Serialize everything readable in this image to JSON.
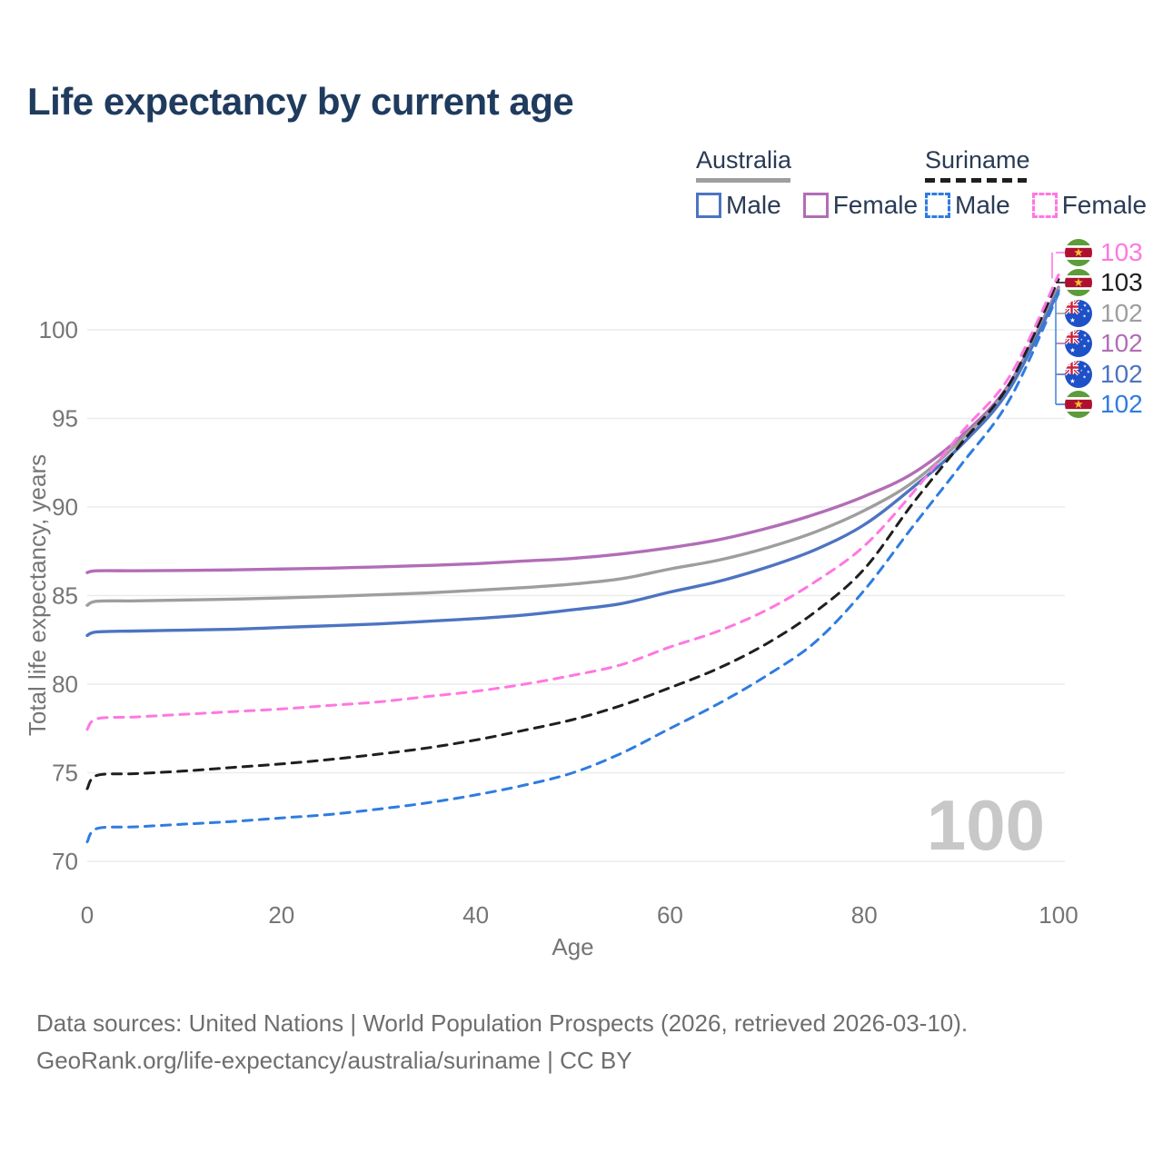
{
  "page": {
    "title": "Life expectancy by current age",
    "watermark": "100"
  },
  "legend": {
    "groups": [
      {
        "label": "Australia",
        "line_style": "solid",
        "items": [
          {
            "label": "Male",
            "color": "#4d74c2"
          },
          {
            "label": "Female",
            "color": "#b26db6"
          }
        ]
      },
      {
        "label": "Suriname",
        "line_style": "dashed",
        "items": [
          {
            "label": "Male",
            "color": "#2f7ce0"
          },
          {
            "label": "Female",
            "color": "#ff77e1"
          }
        ]
      }
    ]
  },
  "chart_data": {
    "type": "line",
    "title": "Life expectancy by current age",
    "xlabel": "Age",
    "ylabel": "Total life expectancy, years",
    "xlim": [
      0,
      100
    ],
    "ylim": [
      70,
      100
    ],
    "xticks": [
      0,
      20,
      40,
      60,
      80,
      100
    ],
    "yticks": [
      70,
      75,
      80,
      85,
      90,
      95,
      100
    ],
    "grid": "horizontal",
    "legend_position": "top-right",
    "x": [
      0,
      1,
      5,
      10,
      15,
      20,
      25,
      30,
      35,
      40,
      45,
      50,
      55,
      60,
      65,
      70,
      75,
      80,
      85,
      90,
      95,
      100
    ],
    "series": [
      {
        "name": "Australia Female",
        "country": "Australia",
        "sex": "Female",
        "color": "#b26db6",
        "dashed": false,
        "values": [
          86.3,
          86.4,
          86.4,
          86.42,
          86.45,
          86.5,
          86.55,
          86.62,
          86.7,
          86.8,
          86.95,
          87.1,
          87.35,
          87.7,
          88.15,
          88.8,
          89.6,
          90.6,
          91.9,
          94.0,
          97.0,
          102.4
        ]
      },
      {
        "name": "Australia Both sexes",
        "country": "Australia",
        "sex": "Both",
        "color": "#9e9e9e",
        "dashed": false,
        "values": [
          84.45,
          84.68,
          84.7,
          84.75,
          84.8,
          84.87,
          84.95,
          85.05,
          85.15,
          85.3,
          85.45,
          85.65,
          85.95,
          86.5,
          87.0,
          87.7,
          88.6,
          89.8,
          91.4,
          93.8,
          96.85,
          102.3
        ]
      },
      {
        "name": "Australia Male",
        "country": "Australia",
        "sex": "Male",
        "color": "#4d74c2",
        "dashed": false,
        "values": [
          82.75,
          82.95,
          83.0,
          83.05,
          83.1,
          83.2,
          83.3,
          83.4,
          83.55,
          83.7,
          83.9,
          84.2,
          84.55,
          85.2,
          85.8,
          86.6,
          87.6,
          89.0,
          91.1,
          93.5,
          96.7,
          102.2
        ]
      },
      {
        "name": "Suriname Male",
        "country": "Suriname",
        "sex": "Male",
        "color": "#2f7ce0",
        "dashed": true,
        "values": [
          71.1,
          71.85,
          71.95,
          72.1,
          72.25,
          72.45,
          72.65,
          72.95,
          73.3,
          73.75,
          74.3,
          75.0,
          76.1,
          77.5,
          78.9,
          80.5,
          82.4,
          85.3,
          88.9,
          92.4,
          96.1,
          102.05
        ]
      },
      {
        "name": "Suriname Both sexes",
        "country": "Suriname",
        "sex": "Both",
        "color": "#1f1f1f",
        "dashed": true,
        "values": [
          74.1,
          74.85,
          74.95,
          75.1,
          75.3,
          75.5,
          75.75,
          76.05,
          76.4,
          76.85,
          77.4,
          78.0,
          78.8,
          79.8,
          80.9,
          82.3,
          84.1,
          86.5,
          90.2,
          93.6,
          97.0,
          102.85
        ]
      },
      {
        "name": "Suriname Female",
        "country": "Suriname",
        "sex": "Female",
        "color": "#ff77e1",
        "dashed": true,
        "values": [
          77.45,
          78.05,
          78.15,
          78.3,
          78.45,
          78.6,
          78.8,
          79.0,
          79.3,
          79.6,
          80.0,
          80.5,
          81.1,
          82.1,
          83.0,
          84.2,
          85.8,
          87.8,
          90.8,
          94.2,
          97.4,
          103.1
        ]
      }
    ],
    "end_labels": [
      {
        "country": "Suriname",
        "series": "Suriname Female",
        "value": "103",
        "color": "#ff77e1"
      },
      {
        "country": "Suriname",
        "series": "Suriname Both sexes",
        "value": "103",
        "color": "#1f1f1f"
      },
      {
        "country": "Australia",
        "series": "Australia Both sexes",
        "value": "102",
        "color": "#9e9e9e"
      },
      {
        "country": "Australia",
        "series": "Australia Female",
        "value": "102",
        "color": "#b26db6"
      },
      {
        "country": "Australia",
        "series": "Australia Male",
        "value": "102",
        "color": "#4d74c2"
      },
      {
        "country": "Suriname",
        "series": "Suriname Male",
        "value": "102",
        "color": "#2f7ce0"
      }
    ]
  },
  "footer": {
    "line1": "Data sources: United Nations | World Population Prospects (2026, retrieved 2026-03-10).",
    "line2": "GeoRank.org/life-expectancy/australia/suriname | CC BY"
  }
}
